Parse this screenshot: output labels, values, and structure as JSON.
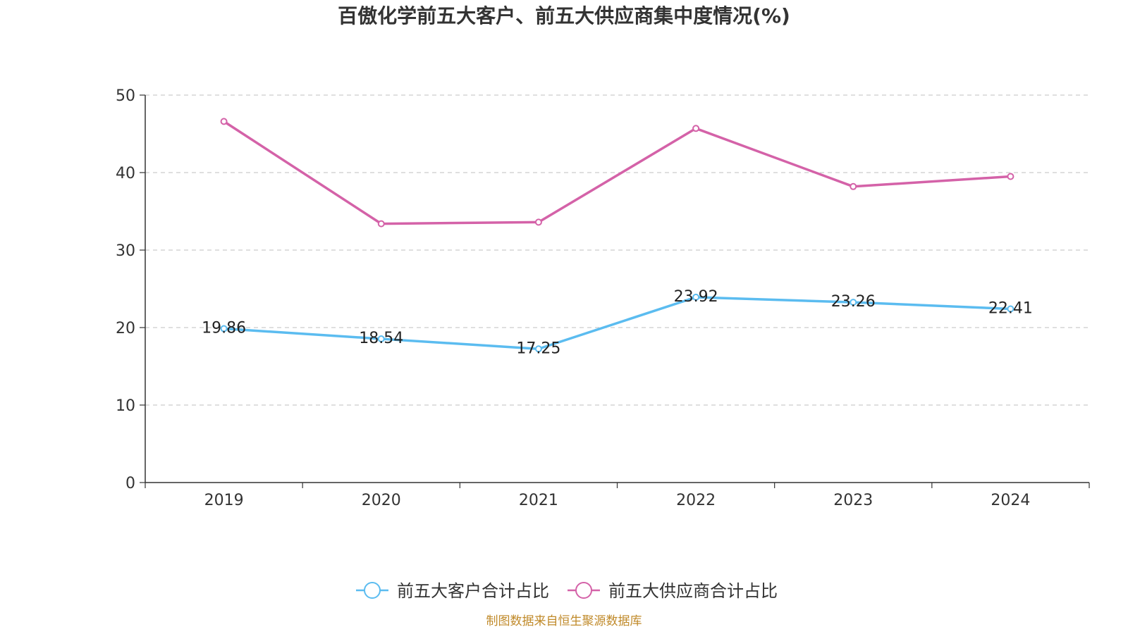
{
  "source_note": "制图数据来自恒生聚源数据库",
  "colors": {
    "customer": "#5bbcf0",
    "supplier": "#d462a8",
    "axis": "#333333",
    "grid": "#cccccc",
    "source": "#c08a2a"
  },
  "chart_data": {
    "type": "line",
    "title": "百傲化学前五大客户、前五大供应商集中度情况(%)",
    "xlabel": "",
    "ylabel": "",
    "categories": [
      "2019",
      "2020",
      "2021",
      "2022",
      "2023",
      "2024"
    ],
    "ylim": [
      0,
      50
    ],
    "yticks": [
      0,
      10,
      20,
      30,
      40,
      50
    ],
    "grid": true,
    "legend_position": "bottom",
    "series": [
      {
        "name": "前五大客户合计占比",
        "color": "#5bbcf0",
        "values": [
          19.86,
          18.54,
          17.25,
          23.92,
          23.26,
          22.41
        ],
        "labels": [
          "19.86",
          "18.54",
          "17.25",
          "23.92",
          "23.26",
          "22.41"
        ]
      },
      {
        "name": "前五大供应商合计占比",
        "color": "#d462a8",
        "values": [
          46.6,
          33.4,
          33.6,
          45.7,
          38.2,
          39.5
        ],
        "labels": null
      }
    ]
  }
}
